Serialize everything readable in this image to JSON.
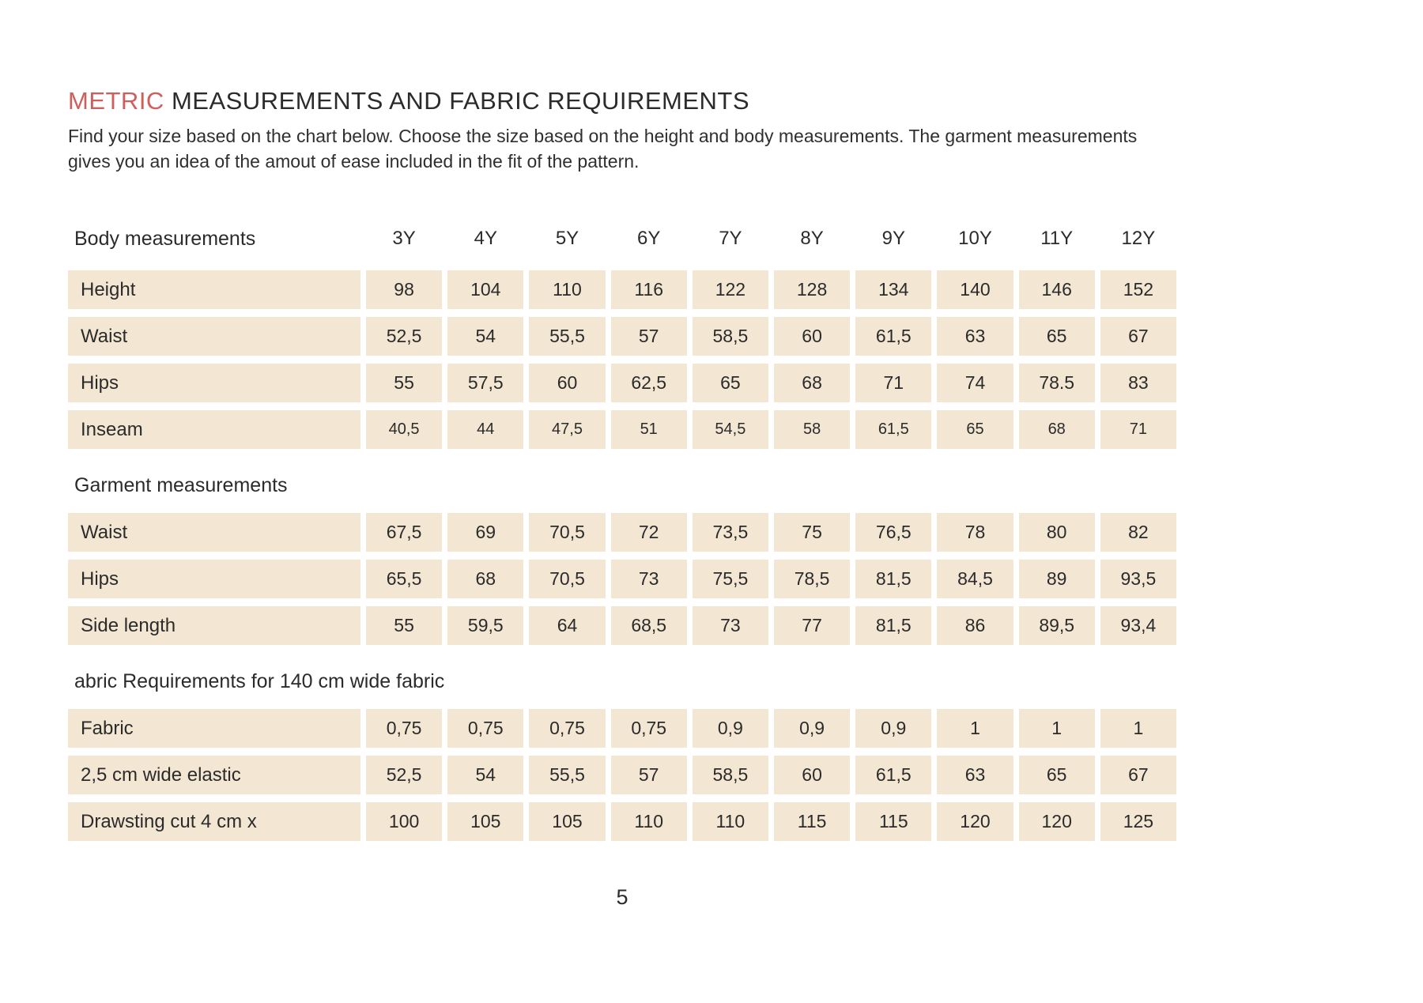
{
  "header": {
    "title_highlight": "METRIC",
    "title_rest": " MEASUREMENTS AND FABRIC REQUIREMENTS",
    "intro_line1": "Find your size based on the chart below. Choose the size based on the height and body measurements. The garment measurements",
    "intro_line2": "gives you an idea of the amout of ease included in the fit of the pattern."
  },
  "colors": {
    "accent": "#cf5f5c",
    "cell_background": "#f3e7d3",
    "text": "#2b2b2b"
  },
  "table": {
    "sizes": [
      "3Y",
      "4Y",
      "5Y",
      "6Y",
      "7Y",
      "8Y",
      "9Y",
      "10Y",
      "11Y",
      "12Y"
    ],
    "sections": [
      {
        "header": "Body measurements",
        "show_sizes": true,
        "rows": [
          {
            "label": "Height",
            "values": [
              "98",
              "104",
              "110",
              "116",
              "122",
              "128",
              "134",
              "140",
              "146",
              "152"
            ]
          },
          {
            "label": "Waist",
            "values": [
              "52,5",
              "54",
              "55,5",
              "57",
              "58,5",
              "60",
              "61,5",
              "63",
              "65",
              "67"
            ]
          },
          {
            "label": "Hips",
            "values": [
              "55",
              "57,5",
              "60",
              "62,5",
              "65",
              "68",
              "71",
              "74",
              "78.5",
              "83"
            ]
          },
          {
            "label": "Inseam",
            "small": true,
            "values": [
              "40,5",
              "44",
              "47,5",
              "51",
              "54,5",
              "58",
              "61,5",
              "65",
              "68",
              "71"
            ]
          }
        ]
      },
      {
        "header": "Garment measurements",
        "show_sizes": false,
        "rows": [
          {
            "label": "Waist",
            "values": [
              "67,5",
              "69",
              "70,5",
              "72",
              "73,5",
              "75",
              "76,5",
              "78",
              "80",
              "82"
            ]
          },
          {
            "label": "Hips",
            "values": [
              "65,5",
              "68",
              "70,5",
              "73",
              "75,5",
              "78,5",
              "81,5",
              "84,5",
              "89",
              "93,5"
            ]
          },
          {
            "label": "Side length",
            "values": [
              "55",
              "59,5",
              "64",
              "68,5",
              "73",
              "77",
              "81,5",
              "86",
              "89,5",
              "93,4"
            ]
          }
        ]
      },
      {
        "header": "abric Requirements for 140 cm wide fabric",
        "show_sizes": false,
        "rows": [
          {
            "label": "Fabric",
            "values": [
              "0,75",
              "0,75",
              "0,75",
              "0,75",
              "0,9",
              "0,9",
              "0,9",
              "1",
              "1",
              "1"
            ]
          },
          {
            "label": "2,5 cm wide elastic",
            "values": [
              "52,5",
              "54",
              "55,5",
              "57",
              "58,5",
              "60",
              "61,5",
              "63",
              "65",
              "67"
            ]
          },
          {
            "label": "Drawsting cut 4 cm x",
            "values": [
              "100",
              "105",
              "105",
              "110",
              "110",
              "115",
              "115",
              "120",
              "120",
              "125"
            ]
          }
        ]
      }
    ]
  },
  "footer": {
    "page_number": "5"
  }
}
